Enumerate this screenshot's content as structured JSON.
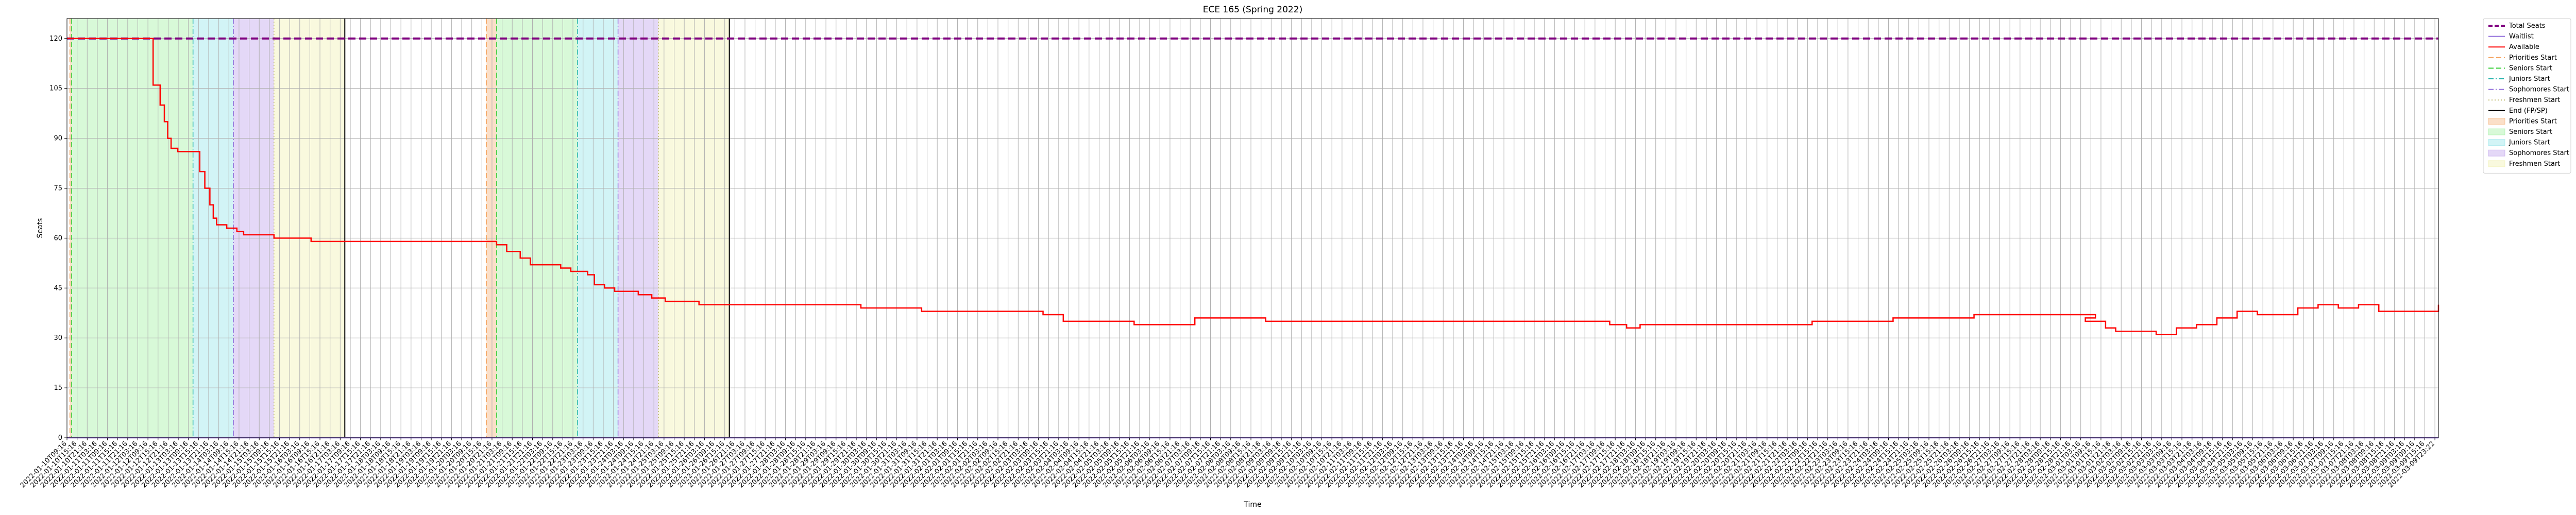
{
  "chart_data": {
    "type": "line",
    "title": "ECE 165 (Spring 2022)",
    "xlabel": "Time",
    "ylabel": "Seats",
    "ylim": [
      0,
      126
    ],
    "yticks": [
      0,
      15,
      30,
      45,
      60,
      75,
      90,
      105,
      120
    ],
    "grid": true,
    "legend_placement": "outside-upper-right",
    "x_tick_first": "2022-01-10T09:16",
    "x_tick_last": "2022-03-09T23:22",
    "x_range": [
      "2022-01-10 09:16",
      "2022-03-09 23:22"
    ],
    "series": [
      {
        "name": "Total Seats",
        "color": "#800080",
        "style": "dashed",
        "points": [
          [
            "2022-01-10 09:16",
            120
          ],
          [
            "2022-03-09 23:22",
            120
          ]
        ]
      },
      {
        "name": "Waitlist",
        "color": "#9370db",
        "style": "solid",
        "points": [
          [
            "2022-01-10 09:16",
            0
          ],
          [
            "2022-03-09 23:22",
            0
          ]
        ]
      },
      {
        "name": "Available",
        "color": "#ff0000",
        "style": "solid",
        "points": [
          [
            "2022-01-10 09:16",
            120
          ],
          [
            "2022-01-12 12:00",
            120
          ],
          [
            "2022-01-12 12:20",
            106
          ],
          [
            "2022-01-12 15:00",
            106
          ],
          [
            "2022-01-12 16:30",
            100
          ],
          [
            "2022-01-12 19:00",
            95
          ],
          [
            "2022-01-12 21:00",
            90
          ],
          [
            "2022-01-12 23:00",
            87
          ],
          [
            "2022-01-13 03:00",
            86
          ],
          [
            "2022-01-13 14:00",
            86
          ],
          [
            "2022-01-13 16:00",
            80
          ],
          [
            "2022-01-13 19:00",
            75
          ],
          [
            "2022-01-13 22:00",
            70
          ],
          [
            "2022-01-14 00:00",
            66
          ],
          [
            "2022-01-14 02:00",
            64
          ],
          [
            "2022-01-14 08:00",
            63
          ],
          [
            "2022-01-14 14:00",
            62
          ],
          [
            "2022-01-14 18:00",
            61
          ],
          [
            "2022-01-15 12:00",
            60
          ],
          [
            "2022-01-16 10:00",
            59
          ],
          [
            "2022-01-20 18:00",
            59
          ],
          [
            "2022-01-21 00:00",
            58
          ],
          [
            "2022-01-21 06:00",
            56
          ],
          [
            "2022-01-21 14:00",
            54
          ],
          [
            "2022-01-21 20:00",
            52
          ],
          [
            "2022-01-22 14:00",
            51
          ],
          [
            "2022-01-22 20:00",
            50
          ],
          [
            "2022-01-23 06:00",
            49
          ],
          [
            "2022-01-23 10:00",
            46
          ],
          [
            "2022-01-23 16:00",
            45
          ],
          [
            "2022-01-23 22:00",
            44
          ],
          [
            "2022-01-24 12:00",
            43
          ],
          [
            "2022-01-24 20:00",
            42
          ],
          [
            "2022-01-25 04:00",
            41
          ],
          [
            "2022-01-26 00:00",
            40
          ],
          [
            "2022-01-29 12:00",
            40
          ],
          [
            "2022-01-30 00:00",
            39
          ],
          [
            "2022-01-31 12:00",
            38
          ],
          [
            "2022-02-03 12:00",
            37
          ],
          [
            "2022-02-04 00:00",
            35
          ],
          [
            "2022-02-05 18:00",
            34
          ],
          [
            "2022-02-07 06:00",
            36
          ],
          [
            "2022-02-09 00:00",
            35
          ],
          [
            "2022-02-17 12:00",
            34
          ],
          [
            "2022-02-17 22:00",
            33
          ],
          [
            "2022-02-18 06:00",
            34
          ],
          [
            "2022-02-22 12:00",
            35
          ],
          [
            "2022-02-24 12:00",
            36
          ],
          [
            "2022-02-26 12:00",
            37
          ],
          [
            "2022-02-29 12:00",
            36
          ],
          [
            "2022-03-01 06:00",
            35
          ],
          [
            "2022-03-01 18:00",
            33
          ],
          [
            "2022-03-02 00:00",
            32
          ],
          [
            "2022-03-03 00:00",
            31
          ],
          [
            "2022-03-03 12:00",
            33
          ],
          [
            "2022-03-04 00:00",
            34
          ],
          [
            "2022-03-04 12:00",
            36
          ],
          [
            "2022-03-05 00:00",
            38
          ],
          [
            "2022-03-05 12:00",
            37
          ],
          [
            "2022-03-06 12:00",
            39
          ],
          [
            "2022-03-07 00:00",
            40
          ],
          [
            "2022-03-07 12:00",
            39
          ],
          [
            "2022-03-08 00:00",
            40
          ],
          [
            "2022-03-08 12:00",
            38
          ],
          [
            "2022-03-09 20:00",
            38
          ],
          [
            "2022-03-09 23:22",
            40
          ]
        ]
      }
    ],
    "vlines": [
      {
        "name": "Priorities Start",
        "at": "2022-01-10 11:00",
        "color": "#f4a460",
        "style": "dashed"
      },
      {
        "name": "Seniors Start",
        "at": "2022-01-10 12:00",
        "color": "#32cd32",
        "style": "dashed"
      },
      {
        "name": "Juniors Start",
        "at": "2022-01-13 12:00",
        "color": "#20b2aa",
        "style": "dashdot"
      },
      {
        "name": "Sophomores Start",
        "at": "2022-01-14 12:00",
        "color": "#9370db",
        "style": "dashdot"
      },
      {
        "name": "Freshmen Start",
        "at": "2022-01-15 12:00",
        "color": "#bdb76b",
        "style": "dotted"
      },
      {
        "name": "End (FP/SP)",
        "at": "2022-01-17 06:00",
        "color": "#000000",
        "style": "solid"
      },
      {
        "name": "Priorities Start",
        "at": "2022-01-20 18:00",
        "color": "#f4a460",
        "style": "dashed"
      },
      {
        "name": "Seniors Start",
        "at": "2022-01-21 00:00",
        "color": "#32cd32",
        "style": "dashed"
      },
      {
        "name": "Juniors Start",
        "at": "2022-01-23 00:00",
        "color": "#20b2aa",
        "style": "dashdot"
      },
      {
        "name": "Sophomores Start",
        "at": "2022-01-24 00:00",
        "color": "#9370db",
        "style": "dashdot"
      },
      {
        "name": "Freshmen Start",
        "at": "2022-01-25 00:00",
        "color": "#bdb76b",
        "style": "dotted"
      },
      {
        "name": "End (FP/SP)",
        "at": "2022-01-26 18:00",
        "color": "#000000",
        "style": "solid"
      }
    ],
    "spans": [
      {
        "name": "Priorities Start",
        "from": "2022-01-10 11:00",
        "to": "2022-01-10 12:00",
        "color": "#f4a460"
      },
      {
        "name": "Seniors Start",
        "from": "2022-01-10 12:00",
        "to": "2022-01-13 12:00",
        "color": "#90ee90"
      },
      {
        "name": "Juniors Start",
        "from": "2022-01-13 12:00",
        "to": "2022-01-14 12:00",
        "color": "#7fdfe6"
      },
      {
        "name": "Sophomores Start",
        "from": "2022-01-14 12:00",
        "to": "2022-01-15 12:00",
        "color": "#b38ee8"
      },
      {
        "name": "Freshmen Start",
        "from": "2022-01-15 12:00",
        "to": "2022-01-17 06:00",
        "color": "#eeeea0"
      },
      {
        "name": "Priorities Start",
        "from": "2022-01-20 18:00",
        "to": "2022-01-21 00:00",
        "color": "#f4a460"
      },
      {
        "name": "Seniors Start",
        "from": "2022-01-21 00:00",
        "to": "2022-01-23 00:00",
        "color": "#90ee90"
      },
      {
        "name": "Juniors Start",
        "from": "2022-01-23 00:00",
        "to": "2022-01-24 00:00",
        "color": "#7fdfe6"
      },
      {
        "name": "Sophomores Start",
        "from": "2022-01-24 00:00",
        "to": "2022-01-25 00:00",
        "color": "#b38ee8"
      },
      {
        "name": "Freshmen Start",
        "from": "2022-01-25 00:00",
        "to": "2022-01-26 18:00",
        "color": "#eeeea0"
      }
    ],
    "legend": [
      {
        "label": "Total Seats",
        "kind": "line",
        "color": "#800080",
        "style": "dashed-thick"
      },
      {
        "label": "Waitlist",
        "kind": "line",
        "color": "#9370db",
        "style": "solid"
      },
      {
        "label": "Available",
        "kind": "line",
        "color": "#ff0000",
        "style": "solid"
      },
      {
        "label": "Priorities Start",
        "kind": "line",
        "color": "#f4a460",
        "style": "dashed"
      },
      {
        "label": "Seniors Start",
        "kind": "line",
        "color": "#32cd32",
        "style": "dashed"
      },
      {
        "label": "Juniors Start",
        "kind": "line",
        "color": "#20b2aa",
        "style": "dashdot"
      },
      {
        "label": "Sophomores Start",
        "kind": "line",
        "color": "#9370db",
        "style": "dashdot"
      },
      {
        "label": "Freshmen Start",
        "kind": "line",
        "color": "#bdb76b",
        "style": "dotted"
      },
      {
        "label": "End (FP/SP)",
        "kind": "line",
        "color": "#000000",
        "style": "solid"
      },
      {
        "label": "Priorities Start",
        "kind": "patch",
        "color": "#f4a460"
      },
      {
        "label": "Seniors Start",
        "kind": "patch",
        "color": "#90ee90"
      },
      {
        "label": "Juniors Start",
        "kind": "patch",
        "color": "#7fdfe6"
      },
      {
        "label": "Sophomores Start",
        "kind": "patch",
        "color": "#b38ee8"
      },
      {
        "label": "Freshmen Start",
        "kind": "patch",
        "color": "#eeeea0"
      }
    ]
  }
}
